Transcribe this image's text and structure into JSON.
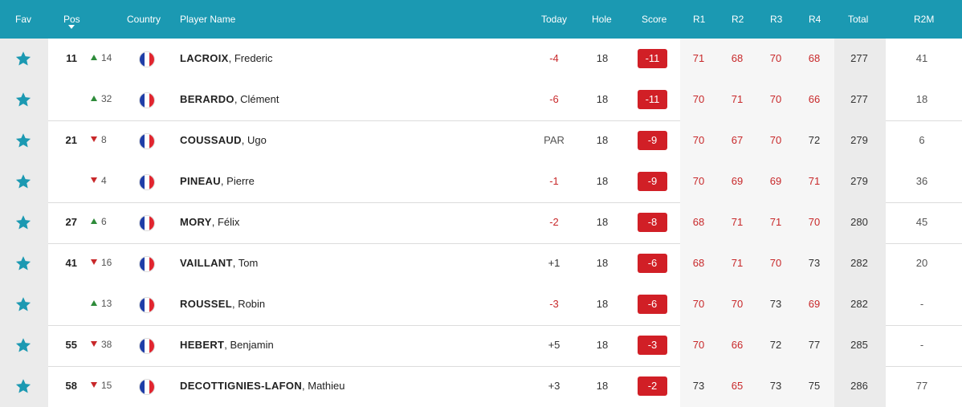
{
  "header": {
    "fav": "Fav",
    "pos": "Pos",
    "country": "Country",
    "player_name": "Player Name",
    "today": "Today",
    "hole": "Hole",
    "score": "Score",
    "r1": "R1",
    "r2": "R2",
    "r3": "R3",
    "r4": "R4",
    "total": "Total",
    "r2m": "R2M"
  },
  "colors": {
    "header_bg": "#1b99b2",
    "star": "#1b99b2",
    "score_badge": "#d11f26",
    "under_par_text": "#c8282a",
    "move_up": "#2e8b3a",
    "move_down": "#c8282a"
  },
  "icons": {
    "favorite": "star-icon",
    "sort": "caret-down-icon",
    "country": "france-flag-icon"
  },
  "rows": [
    {
      "pos": "11",
      "move_dir": "up",
      "move": "14",
      "last": "LACROIX",
      "first": "Frederic",
      "today": "-4",
      "hole": "18",
      "score": "-11",
      "r1": "71",
      "r2": "68",
      "r3": "70",
      "r4": "68",
      "total": "277",
      "r2m": "41"
    },
    {
      "pos": "",
      "move_dir": "up",
      "move": "32",
      "last": "BERARDO",
      "first": "Clément",
      "today": "-6",
      "hole": "18",
      "score": "-11",
      "r1": "70",
      "r2": "71",
      "r3": "70",
      "r4": "66",
      "total": "277",
      "r2m": "18"
    },
    {
      "pos": "21",
      "move_dir": "down",
      "move": "8",
      "last": "COUSSAUD",
      "first": "Ugo",
      "today": "PAR",
      "hole": "18",
      "score": "-9",
      "r1": "70",
      "r2": "67",
      "r3": "70",
      "r4": "72",
      "total": "279",
      "r2m": "6"
    },
    {
      "pos": "",
      "move_dir": "down",
      "move": "4",
      "last": "PINEAU",
      "first": "Pierre",
      "today": "-1",
      "hole": "18",
      "score": "-9",
      "r1": "70",
      "r2": "69",
      "r3": "69",
      "r4": "71",
      "total": "279",
      "r2m": "36"
    },
    {
      "pos": "27",
      "move_dir": "up",
      "move": "6",
      "last": "MORY",
      "first": "Félix",
      "today": "-2",
      "hole": "18",
      "score": "-8",
      "r1": "68",
      "r2": "71",
      "r3": "71",
      "r4": "70",
      "total": "280",
      "r2m": "45"
    },
    {
      "pos": "41",
      "move_dir": "down",
      "move": "16",
      "last": "VAILLANT",
      "first": "Tom",
      "today": "+1",
      "hole": "18",
      "score": "-6",
      "r1": "68",
      "r2": "71",
      "r3": "70",
      "r4": "73",
      "total": "282",
      "r2m": "20"
    },
    {
      "pos": "",
      "move_dir": "up",
      "move": "13",
      "last": "ROUSSEL",
      "first": "Robin",
      "today": "-3",
      "hole": "18",
      "score": "-6",
      "r1": "70",
      "r2": "70",
      "r3": "73",
      "r4": "69",
      "total": "282",
      "r2m": "-"
    },
    {
      "pos": "55",
      "move_dir": "down",
      "move": "38",
      "last": "HEBERT",
      "first": "Benjamin",
      "today": "+5",
      "hole": "18",
      "score": "-3",
      "r1": "70",
      "r2": "66",
      "r3": "72",
      "r4": "77",
      "total": "285",
      "r2m": "-"
    },
    {
      "pos": "58",
      "move_dir": "down",
      "move": "15",
      "last": "DECOTTIGNIES-LAFON",
      "first": "Mathieu",
      "today": "+3",
      "hole": "18",
      "score": "-2",
      "r1": "73",
      "r2": "65",
      "r3": "73",
      "r4": "75",
      "total": "286",
      "r2m": "77"
    }
  ]
}
